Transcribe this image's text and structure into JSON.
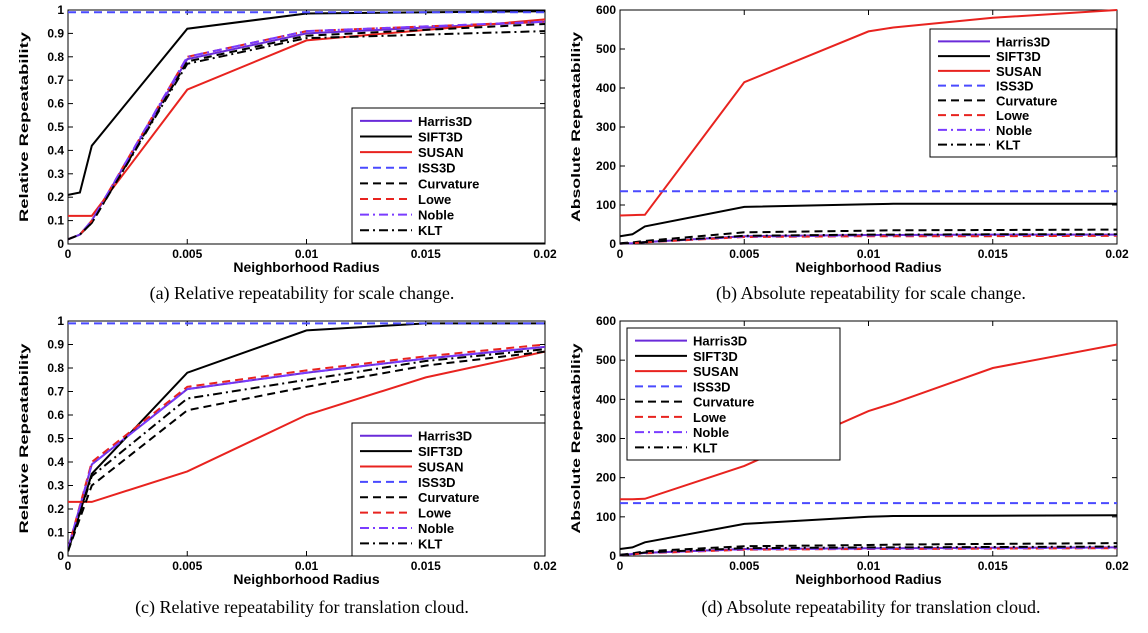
{
  "chart_data": [
    {
      "type": "line",
      "caption": "(a) Relative repeatability for scale change.",
      "xlabel": "Neighborhood Radius",
      "ylabel": "Relative Repeatability",
      "xlim": [
        0,
        0.02
      ],
      "ylim": [
        0,
        1
      ],
      "xticks": [
        "0",
        "0.005",
        "0.01",
        "0.015",
        "0.02"
      ],
      "yticks": [
        "0",
        "0.1",
        "0.2",
        "0.3",
        "0.4",
        "0.5",
        "0.6",
        "0.7",
        "0.8",
        "0.9",
        "1"
      ],
      "grid": false,
      "legend_position": "bottom-right",
      "x": [
        0,
        0.0005,
        0.001,
        0.005,
        0.01,
        0.02
      ],
      "series": [
        {
          "name": "Harris3D",
          "values": [
            0.02,
            0.04,
            0.1,
            0.79,
            0.9,
            0.95
          ]
        },
        {
          "name": "SIFT3D",
          "values": [
            0.21,
            0.22,
            0.42,
            0.92,
            0.985,
            0.995
          ]
        },
        {
          "name": "SUSAN",
          "values": [
            0.12,
            0.12,
            0.12,
            0.66,
            0.87,
            0.96
          ]
        },
        {
          "name": "ISS3D",
          "values": [
            0.99,
            0.99,
            0.99,
            0.99,
            0.99,
            0.99
          ]
        },
        {
          "name": "Curvature",
          "values": [
            0.02,
            0.04,
            0.09,
            0.78,
            0.89,
            0.94
          ]
        },
        {
          "name": "Lowe",
          "values": [
            0.02,
            0.04,
            0.1,
            0.8,
            0.91,
            0.95
          ]
        },
        {
          "name": "Noble",
          "values": [
            0.02,
            0.04,
            0.1,
            0.8,
            0.91,
            0.95
          ]
        },
        {
          "name": "KLT",
          "values": [
            0.02,
            0.04,
            0.09,
            0.77,
            0.88,
            0.91
          ]
        }
      ]
    },
    {
      "type": "line",
      "caption": "(b) Absolute repeatability for scale change.",
      "xlabel": "Neighborhood Radius",
      "ylabel": "Absolute Repeatability",
      "xlim": [
        0,
        0.02
      ],
      "ylim": [
        0,
        600
      ],
      "xticks": [
        "0",
        "0.005",
        "0.01",
        "0.015",
        "0.02"
      ],
      "yticks": [
        "0",
        "100",
        "200",
        "300",
        "400",
        "500",
        "600"
      ],
      "grid": false,
      "legend_position": "top-right",
      "x": [
        0,
        0.0005,
        0.001,
        0.005,
        0.01,
        0.011,
        0.015,
        0.02
      ],
      "series": [
        {
          "name": "Harris3D",
          "values": [
            1,
            2,
            5,
            20,
            23,
            23,
            24,
            24
          ]
        },
        {
          "name": "SIFT3D",
          "values": [
            20,
            25,
            45,
            95,
            102,
            103,
            103,
            103
          ]
        },
        {
          "name": "SUSAN",
          "values": [
            73,
            74,
            75,
            415,
            545,
            555,
            580,
            600
          ]
        },
        {
          "name": "ISS3D",
          "values": [
            135,
            135,
            135,
            135,
            135,
            135,
            135,
            135
          ]
        },
        {
          "name": "Curvature",
          "values": [
            2,
            4,
            8,
            30,
            34,
            35,
            36,
            37
          ]
        },
        {
          "name": "Lowe",
          "values": [
            1,
            2,
            4,
            18,
            20,
            20,
            20,
            21
          ]
        },
        {
          "name": "Noble",
          "values": [
            1,
            2,
            5,
            19,
            22,
            22,
            23,
            23
          ]
        },
        {
          "name": "KLT",
          "values": [
            1,
            2,
            5,
            21,
            24,
            24,
            25,
            25
          ]
        }
      ]
    },
    {
      "type": "line",
      "caption": "(c) Relative repeatability for translation cloud.",
      "xlabel": "Neighborhood Radius",
      "ylabel": "Relative Repeatability",
      "xlim": [
        0,
        0.02
      ],
      "ylim": [
        0,
        1
      ],
      "xticks": [
        "0",
        "0.005",
        "0.01",
        "0.015",
        "0.02"
      ],
      "yticks": [
        "0",
        "0.1",
        "0.2",
        "0.3",
        "0.4",
        "0.5",
        "0.6",
        "0.7",
        "0.8",
        "0.9",
        "1"
      ],
      "grid": false,
      "legend_position": "bottom-right",
      "x": [
        0,
        0.001,
        0.005,
        0.01,
        0.015,
        0.02
      ],
      "series": [
        {
          "name": "Harris3D",
          "values": [
            0.03,
            0.39,
            0.71,
            0.78,
            0.84,
            0.89
          ]
        },
        {
          "name": "SIFT3D",
          "values": [
            0.02,
            0.35,
            0.78,
            0.96,
            0.99,
            0.99
          ]
        },
        {
          "name": "SUSAN",
          "values": [
            0.23,
            0.23,
            0.36,
            0.6,
            0.76,
            0.87
          ]
        },
        {
          "name": "ISS3D",
          "values": [
            0.99,
            0.99,
            0.99,
            0.99,
            0.99,
            0.99
          ]
        },
        {
          "name": "Curvature",
          "values": [
            0.02,
            0.3,
            0.62,
            0.72,
            0.81,
            0.87
          ]
        },
        {
          "name": "Lowe",
          "values": [
            0.03,
            0.4,
            0.72,
            0.79,
            0.85,
            0.9
          ]
        },
        {
          "name": "Noble",
          "values": [
            0.03,
            0.39,
            0.71,
            0.78,
            0.84,
            0.89
          ]
        },
        {
          "name": "KLT",
          "values": [
            0.02,
            0.34,
            0.67,
            0.75,
            0.83,
            0.88
          ]
        }
      ]
    },
    {
      "type": "line",
      "caption": "(d) Absolute repeatability for translation cloud.",
      "xlabel": "Neighborhood Radius",
      "ylabel": "Absolute Repeatability",
      "xlim": [
        0,
        0.02
      ],
      "ylim": [
        0,
        600
      ],
      "xticks": [
        "0",
        "0.005",
        "0.01",
        "0.015",
        "0.02"
      ],
      "yticks": [
        "0",
        "100",
        "200",
        "300",
        "400",
        "500",
        "600"
      ],
      "grid": false,
      "legend_position": "top-left",
      "x": [
        0,
        0.0005,
        0.001,
        0.005,
        0.01,
        0.011,
        0.015,
        0.02
      ],
      "series": [
        {
          "name": "Harris3D",
          "values": [
            2,
            5,
            8,
            18,
            20,
            20,
            21,
            22
          ]
        },
        {
          "name": "SIFT3D",
          "values": [
            18,
            22,
            35,
            82,
            100,
            102,
            103,
            104
          ]
        },
        {
          "name": "SUSAN",
          "values": [
            145,
            145,
            146,
            230,
            370,
            390,
            480,
            540
          ]
        },
        {
          "name": "ISS3D",
          "values": [
            135,
            135,
            135,
            135,
            135,
            135,
            135,
            135
          ]
        },
        {
          "name": "Curvature",
          "values": [
            3,
            7,
            12,
            25,
            28,
            29,
            31,
            33
          ]
        },
        {
          "name": "Lowe",
          "values": [
            2,
            4,
            7,
            16,
            18,
            18,
            19,
            20
          ]
        },
        {
          "name": "Noble",
          "values": [
            2,
            5,
            8,
            17,
            19,
            19,
            20,
            21
          ]
        },
        {
          "name": "KLT",
          "values": [
            2,
            5,
            9,
            20,
            22,
            22,
            23,
            24
          ]
        }
      ]
    }
  ],
  "series_styles": [
    {
      "color": "#6a2bd9",
      "dash": "solid"
    },
    {
      "color": "#000000",
      "dash": "solid"
    },
    {
      "color": "#e8231f",
      "dash": "solid"
    },
    {
      "color": "#4a4aff",
      "dash": "dashed"
    },
    {
      "color": "#000000",
      "dash": "dashed"
    },
    {
      "color": "#e8231f",
      "dash": "dashed"
    },
    {
      "color": "#7a3cff",
      "dash": "dashdot"
    },
    {
      "color": "#000000",
      "dash": "dashdot"
    }
  ]
}
